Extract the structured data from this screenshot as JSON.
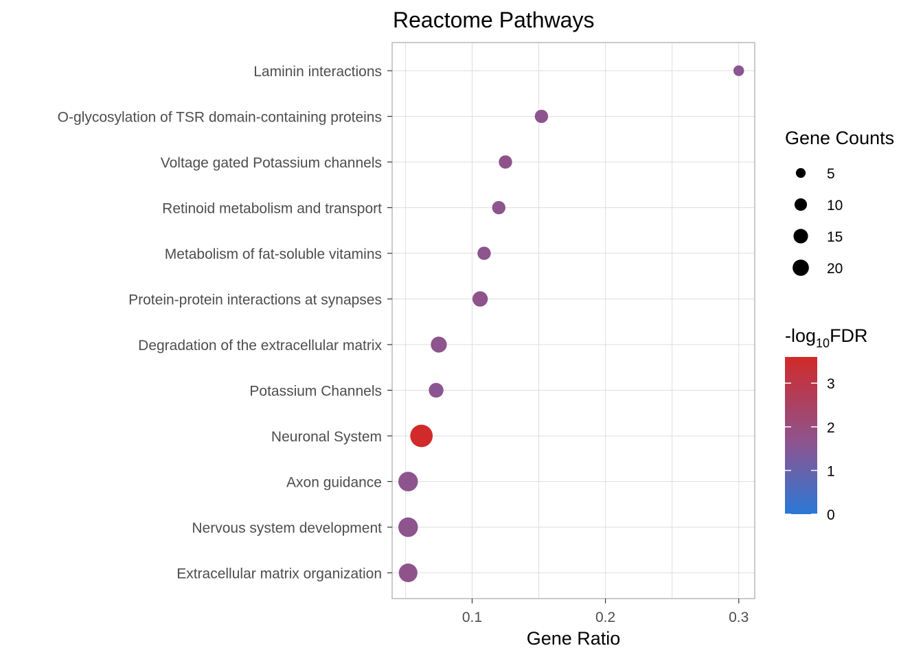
{
  "chart_data": {
    "type": "scatter",
    "title": "Reactome Pathways",
    "xlabel": "Gene Ratio",
    "ylabel": "",
    "xlim": [
      0.04,
      0.312
    ],
    "xticks": [
      0.1,
      0.2,
      0.3
    ],
    "xtick_labels": [
      "0.1",
      "0.2",
      "0.3"
    ],
    "grid": true,
    "categories": [
      "Laminin interactions",
      "O-glycosylation of TSR domain-containing proteins",
      "Voltage gated Potassium channels",
      "Retinoid metabolism and transport",
      "Metabolism of fat-soluble vitamins",
      "Protein-protein interactions at synapses",
      "Degradation of the extracellular matrix",
      "Potassium Channels",
      "Neuronal System",
      "Axon guidance",
      "Nervous system development",
      "Extracellular matrix organization"
    ],
    "points": [
      {
        "pathway": "Laminin interactions",
        "gene_ratio": 0.3,
        "gene_count": 3,
        "neg_log10_fdr": 1.6
      },
      {
        "pathway": "O-glycosylation of TSR domain-containing proteins",
        "gene_ratio": 0.152,
        "gene_count": 6,
        "neg_log10_fdr": 1.65
      },
      {
        "pathway": "Voltage gated Potassium channels",
        "gene_ratio": 0.125,
        "gene_count": 6,
        "neg_log10_fdr": 1.7
      },
      {
        "pathway": "Retinoid metabolism and transport",
        "gene_ratio": 0.12,
        "gene_count": 6,
        "neg_log10_fdr": 1.65
      },
      {
        "pathway": "Metabolism of fat-soluble vitamins",
        "gene_ratio": 0.109,
        "gene_count": 6,
        "neg_log10_fdr": 1.65
      },
      {
        "pathway": "Protein-protein interactions at synapses",
        "gene_ratio": 0.106,
        "gene_count": 9,
        "neg_log10_fdr": 1.7
      },
      {
        "pathway": "Degradation of the extracellular matrix",
        "gene_ratio": 0.075,
        "gene_count": 10,
        "neg_log10_fdr": 1.65
      },
      {
        "pathway": "Potassium Channels",
        "gene_ratio": 0.073,
        "gene_count": 8,
        "neg_log10_fdr": 1.6
      },
      {
        "pathway": "Neuronal System",
        "gene_ratio": 0.062,
        "gene_count": 24,
        "neg_log10_fdr": 3.6
      },
      {
        "pathway": "Axon guidance",
        "gene_ratio": 0.052,
        "gene_count": 17,
        "neg_log10_fdr": 1.65
      },
      {
        "pathway": "Nervous system development",
        "gene_ratio": 0.052,
        "gene_count": 17,
        "neg_log10_fdr": 1.65
      },
      {
        "pathway": "Extracellular matrix organization",
        "gene_ratio": 0.052,
        "gene_count": 15,
        "neg_log10_fdr": 1.7
      }
    ],
    "size_legend": {
      "title": "Gene Counts",
      "values": [
        5,
        10,
        15,
        20
      ],
      "labels": [
        "5",
        "10",
        "15",
        "20"
      ]
    },
    "color_legend": {
      "title_prefix": "-log",
      "title_subscript": "10",
      "title_suffix": "FDR",
      "range": [
        0,
        3.6
      ],
      "ticks": [
        0,
        1,
        2,
        3
      ],
      "tick_labels": [
        "0",
        "1",
        "2",
        "3"
      ],
      "low_color": "#2a78d6",
      "mid_color": "#8c5590",
      "high_color": "#d12a2a"
    }
  }
}
